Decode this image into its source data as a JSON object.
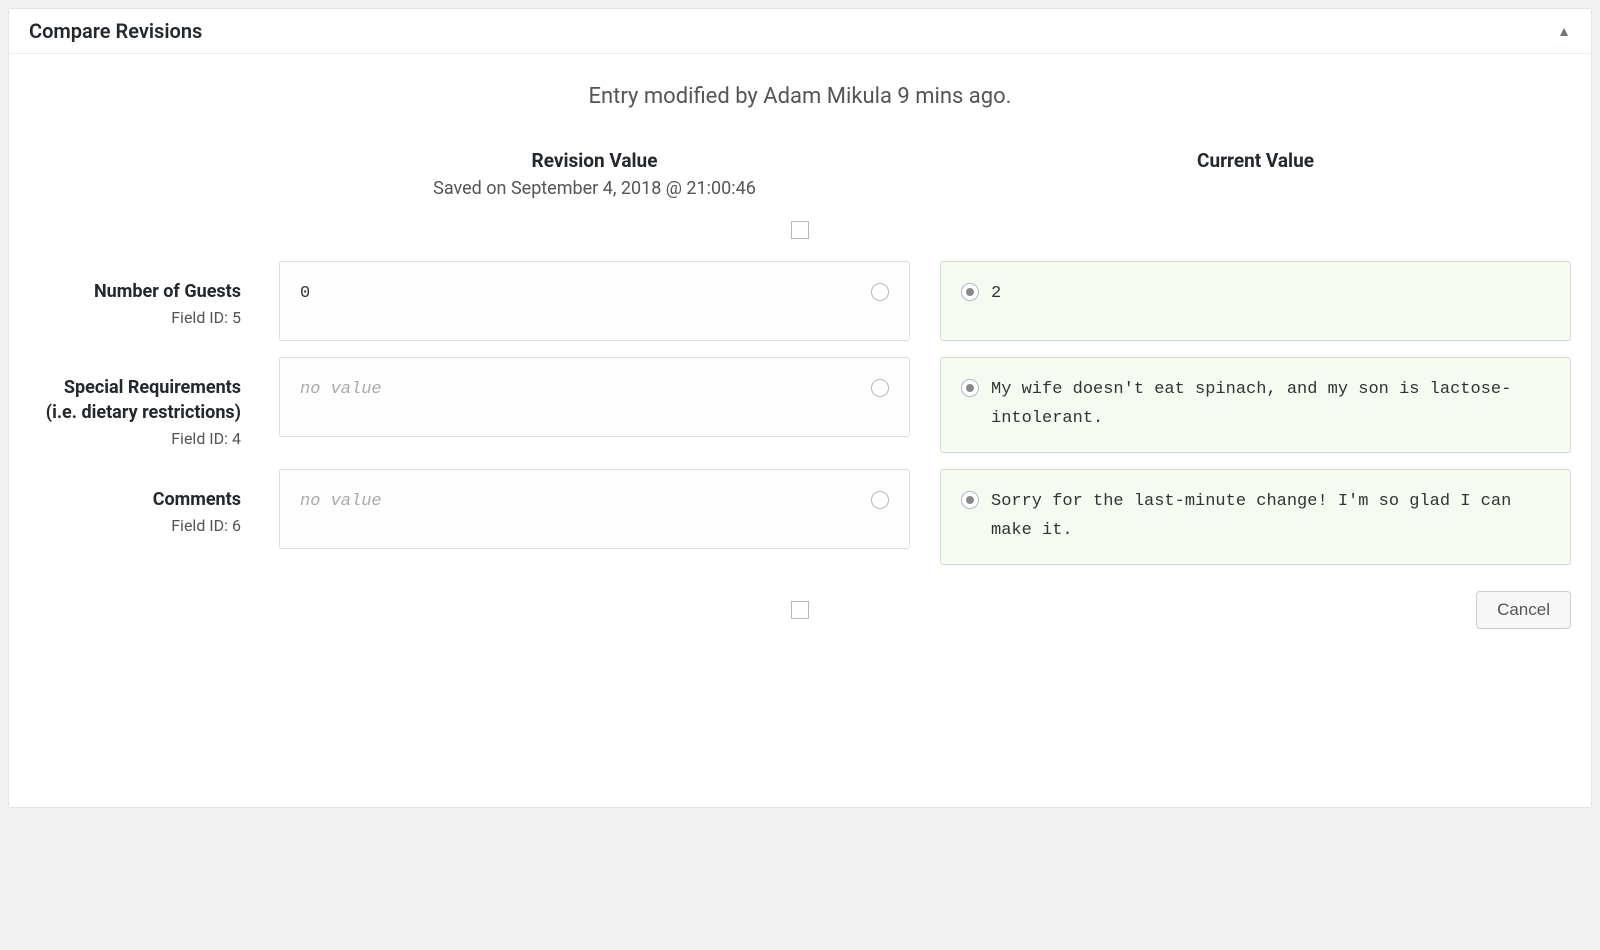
{
  "panel": {
    "title": "Compare Revisions",
    "modified_text": "Entry modified by Adam Mikula 9 mins ago."
  },
  "columns": {
    "revision": {
      "title": "Revision Value",
      "subtitle": "Saved on September 4, 2018 @ 21:00:46"
    },
    "current": {
      "title": "Current Value",
      "subtitle": ""
    }
  },
  "fields": [
    {
      "label": "Number of Guests",
      "id_label": "Field ID: 5",
      "revision_value": "0",
      "revision_is_placeholder": false,
      "current_value": "2"
    },
    {
      "label": "Special Requirements (i.e. dietary restrictions)",
      "id_label": "Field ID: 4",
      "revision_value": "no value",
      "revision_is_placeholder": true,
      "current_value": "My wife doesn't eat spinach, and my son is lactose-intolerant."
    },
    {
      "label": "Comments",
      "id_label": "Field ID: 6",
      "revision_value": "no value",
      "revision_is_placeholder": true,
      "current_value": "Sorry for the last-minute change! I'm so glad I can make it."
    }
  ],
  "buttons": {
    "cancel": "Cancel"
  },
  "colors": {
    "panel_bg": "#ffffff",
    "page_bg": "#f1f1f1",
    "border": "#e5e5e5",
    "revision_box_bg": "#fdfdfd",
    "current_box_bg": "#f5faf2",
    "current_box_border": "#d4dccf",
    "text_primary": "#23282d",
    "text_secondary": "#555555",
    "placeholder": "#aaaaaa"
  }
}
